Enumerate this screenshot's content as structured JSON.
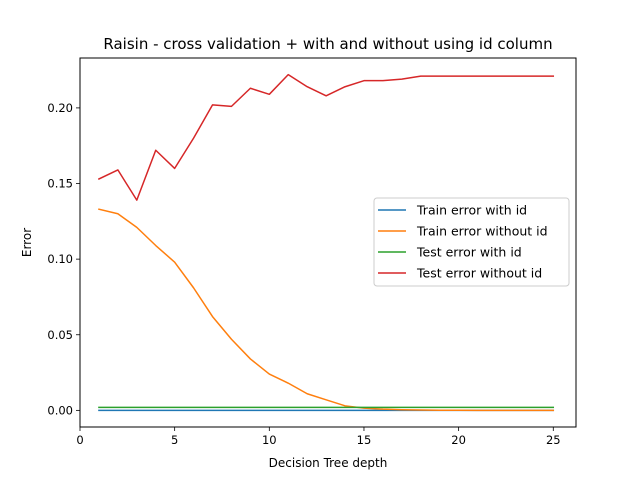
{
  "chart_data": {
    "type": "line",
    "title": "Raisin - cross validation + with and without using id column",
    "xlabel": "Decision Tree depth",
    "ylabel": "Error",
    "xlim": [
      0,
      26.2
    ],
    "ylim": [
      -0.011,
      0.233
    ],
    "xticks": [
      0,
      5,
      10,
      15,
      20,
      25
    ],
    "yticks": [
      0.0,
      0.05,
      0.1,
      0.15,
      0.2
    ],
    "ytick_labels": [
      "0.00",
      "0.05",
      "0.10",
      "0.15",
      "0.20"
    ],
    "grid": false,
    "legend_position": "center-right",
    "x": [
      1,
      2,
      3,
      4,
      5,
      6,
      7,
      8,
      9,
      10,
      11,
      12,
      13,
      14,
      15,
      16,
      17,
      18,
      19,
      20,
      21,
      22,
      23,
      24,
      25
    ],
    "series": [
      {
        "name": "Train error with id",
        "color": "#1f77b4",
        "values": [
          0,
          0,
          0,
          0,
          0,
          0,
          0,
          0,
          0,
          0,
          0,
          0,
          0,
          0,
          0,
          0,
          0,
          0,
          0,
          0,
          0,
          0,
          0,
          0,
          0
        ]
      },
      {
        "name": "Train error without id",
        "color": "#ff7f0e",
        "values": [
          0.133,
          0.13,
          0.121,
          0.109,
          0.098,
          0.081,
          0.062,
          0.047,
          0.034,
          0.024,
          0.018,
          0.011,
          0.007,
          0.003,
          0.0015,
          0.0008,
          0.0004,
          0.0002,
          0.0001,
          0.0001,
          0,
          0,
          0,
          0,
          0
        ]
      },
      {
        "name": "Test error with id",
        "color": "#2ca02c",
        "values": [
          0.002,
          0.002,
          0.002,
          0.002,
          0.002,
          0.002,
          0.002,
          0.002,
          0.002,
          0.002,
          0.002,
          0.002,
          0.002,
          0.002,
          0.002,
          0.002,
          0.002,
          0.002,
          0.002,
          0.002,
          0.002,
          0.002,
          0.002,
          0.002,
          0.002
        ]
      },
      {
        "name": "Test error without id",
        "color": "#d62728",
        "values": [
          0.153,
          0.159,
          0.139,
          0.172,
          0.16,
          0.18,
          0.202,
          0.201,
          0.213,
          0.209,
          0.222,
          0.214,
          0.208,
          0.214,
          0.218,
          0.218,
          0.219,
          0.221,
          0.221,
          0.221,
          0.221,
          0.221,
          0.221,
          0.221,
          0.221
        ]
      }
    ]
  }
}
